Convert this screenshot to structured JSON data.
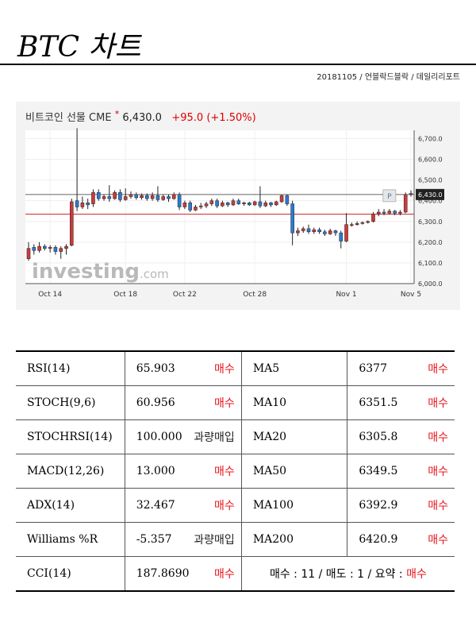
{
  "header": {
    "title": "BTC 차트",
    "subtitle": "20181105 / 언블락드블락 / 데일리리포트"
  },
  "chart_head": {
    "name": "비트코인 선물 CME",
    "star": "*",
    "price": "6,430.0",
    "change": "+95.0 (+1.50%)"
  },
  "watermark": {
    "main": "investing",
    "suffix": ".com"
  },
  "marker": "P",
  "chart_data": {
    "type": "candlestick",
    "x_tick_labels": [
      {
        "label": "Oct 14",
        "index": 4
      },
      {
        "label": "Oct 18",
        "index": 18
      },
      {
        "label": "Oct 22",
        "index": 29
      },
      {
        "label": "Oct 28",
        "index": 42
      },
      {
        "label": "Nov 1",
        "index": 59
      },
      {
        "label": "Nov 5",
        "index": 71
      }
    ],
    "y_ticks": [
      {
        "label": "6,700.0",
        "value": 6700
      },
      {
        "label": "6,600.0",
        "value": 6600
      },
      {
        "label": "6,500.0",
        "value": 6500
      },
      {
        "label": "6,400.0",
        "value": 6400
      },
      {
        "label": "6,300.0",
        "value": 6300
      },
      {
        "label": "6,200.0",
        "value": 6200
      },
      {
        "label": "6,100.0",
        "value": 6100
      },
      {
        "label": "6,000.0",
        "value": 6000
      }
    ],
    "ylim": [
      6000,
      6740
    ],
    "current_price": 6430,
    "current_price_label": "6,430.0",
    "previous_close": 6335,
    "candles": [
      [
        6120,
        6170,
        6110,
        6200
      ],
      [
        6175,
        6160,
        6140,
        6190
      ],
      [
        6160,
        6180,
        6150,
        6200
      ],
      [
        6180,
        6170,
        6160,
        6190
      ],
      [
        6170,
        6175,
        6150,
        6185
      ],
      [
        6175,
        6155,
        6140,
        6185
      ],
      [
        6155,
        6170,
        6120,
        6180
      ],
      [
        6170,
        6180,
        6140,
        6190
      ],
      [
        6185,
        6395,
        6180,
        6410
      ],
      [
        6400,
        6370,
        6350,
        6750
      ],
      [
        6370,
        6390,
        6360,
        6420
      ],
      [
        6390,
        6380,
        6360,
        6410
      ],
      [
        6385,
        6440,
        6370,
        6455
      ],
      [
        6440,
        6410,
        6400,
        6455
      ],
      [
        6410,
        6420,
        6400,
        6430
      ],
      [
        6420,
        6410,
        6395,
        6475
      ],
      [
        6410,
        6440,
        6405,
        6450
      ],
      [
        6440,
        6405,
        6395,
        6455
      ],
      [
        6405,
        6420,
        6400,
        6460
      ],
      [
        6420,
        6430,
        6410,
        6445
      ],
      [
        6430,
        6415,
        6405,
        6440
      ],
      [
        6415,
        6425,
        6405,
        6435
      ],
      [
        6425,
        6410,
        6400,
        6435
      ],
      [
        6410,
        6425,
        6400,
        6440
      ],
      [
        6425,
        6405,
        6395,
        6470
      ],
      [
        6405,
        6420,
        6400,
        6430
      ],
      [
        6420,
        6410,
        6395,
        6430
      ],
      [
        6410,
        6430,
        6405,
        6440
      ],
      [
        6430,
        6370,
        6355,
        6440
      ],
      [
        6370,
        6390,
        6360,
        6400
      ],
      [
        6390,
        6355,
        6345,
        6400
      ],
      [
        6355,
        6370,
        6350,
        6380
      ],
      [
        6370,
        6375,
        6360,
        6390
      ],
      [
        6375,
        6385,
        6365,
        6395
      ],
      [
        6385,
        6400,
        6375,
        6410
      ],
      [
        6400,
        6375,
        6365,
        6410
      ],
      [
        6375,
        6390,
        6370,
        6400
      ],
      [
        6390,
        6380,
        6370,
        6395
      ],
      [
        6380,
        6400,
        6375,
        6410
      ],
      [
        6400,
        6385,
        6380,
        6410
      ],
      [
        6385,
        6390,
        6375,
        6395
      ],
      [
        6390,
        6380,
        6375,
        6395
      ],
      [
        6380,
        6395,
        6375,
        6400
      ],
      [
        6395,
        6375,
        6365,
        6470
      ],
      [
        6375,
        6390,
        6370,
        6400
      ],
      [
        6390,
        6380,
        6370,
        6395
      ],
      [
        6380,
        6395,
        6375,
        6400
      ],
      [
        6395,
        6425,
        6390,
        6430
      ],
      [
        6425,
        6385,
        6375,
        6430
      ],
      [
        6385,
        6245,
        6185,
        6400
      ],
      [
        6245,
        6255,
        6230,
        6270
      ],
      [
        6255,
        6265,
        6245,
        6275
      ],
      [
        6265,
        6250,
        6240,
        6285
      ],
      [
        6250,
        6260,
        6240,
        6270
      ],
      [
        6260,
        6250,
        6240,
        6270
      ],
      [
        6250,
        6240,
        6230,
        6260
      ],
      [
        6240,
        6255,
        6235,
        6265
      ],
      [
        6255,
        6245,
        6230,
        6260
      ],
      [
        6245,
        6205,
        6170,
        6255
      ],
      [
        6205,
        6285,
        6200,
        6340
      ],
      [
        6285,
        6285,
        6275,
        6295
      ],
      [
        6285,
        6290,
        6280,
        6300
      ],
      [
        6290,
        6295,
        6285,
        6300
      ],
      [
        6295,
        6300,
        6290,
        6305
      ],
      [
        6300,
        6335,
        6295,
        6345
      ],
      [
        6335,
        6345,
        6325,
        6360
      ],
      [
        6345,
        6340,
        6330,
        6360
      ],
      [
        6340,
        6350,
        6335,
        6360
      ],
      [
        6350,
        6340,
        6330,
        6355
      ],
      [
        6340,
        6345,
        6330,
        6355
      ],
      [
        6345,
        6430,
        6340,
        6440
      ],
      [
        6430,
        6435,
        6420,
        6450
      ]
    ]
  },
  "indicators": [
    {
      "name": "RSI(14)",
      "value": "65.903",
      "signal": "매수",
      "signal_type": "buy",
      "ma_name": "MA5",
      "ma_value": "6377",
      "ma_signal": "매수"
    },
    {
      "name": "STOCH(9,6)",
      "value": "60.956",
      "signal": "매수",
      "signal_type": "buy",
      "ma_name": "MA10",
      "ma_value": "6351.5",
      "ma_signal": "매수"
    },
    {
      "name": "STOCHRSI(14)",
      "value": "100.000",
      "signal": "과량매입",
      "signal_type": "over",
      "ma_name": "MA20",
      "ma_value": "6305.8",
      "ma_signal": "매수"
    },
    {
      "name": "MACD(12,26)",
      "value": "13.000",
      "signal": "매수",
      "signal_type": "buy",
      "ma_name": "MA50",
      "ma_value": "6349.5",
      "ma_signal": "매수"
    },
    {
      "name": "ADX(14)",
      "value": "32.467",
      "signal": "매수",
      "signal_type": "buy",
      "ma_name": "MA100",
      "ma_value": "6392.9",
      "ma_signal": "매수"
    },
    {
      "name": "Williams %R",
      "value": "-5.357",
      "signal": "과량매입",
      "signal_type": "over",
      "ma_name": "MA200",
      "ma_value": "6420.9",
      "ma_signal": "매수"
    },
    {
      "name": "CCI(14)",
      "value": "187.8690",
      "signal": "매수",
      "signal_type": "buy"
    }
  ],
  "summary": {
    "text": "매수 : 11 / 매도 : 1 / 요약 : ",
    "verdict": "매수"
  },
  "colors": {
    "up": "#cd3a3a",
    "down": "#2b7bd3",
    "buy": "#e8141c",
    "price_line": "#cc2222"
  }
}
